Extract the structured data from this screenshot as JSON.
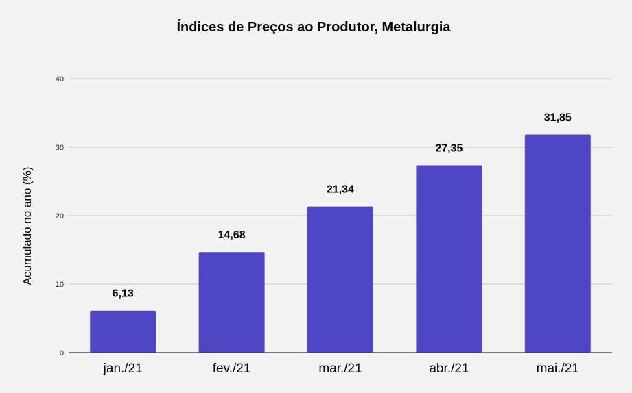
{
  "chart_data": {
    "type": "bar",
    "title": "Índices de Preços ao Produtor, Metalurgia",
    "xlabel": "",
    "ylabel": "Acumulado no ano (%)",
    "categories": [
      "jan./21",
      "fev./21",
      "mar./21",
      "abr./21",
      "mai./21"
    ],
    "values": [
      6.13,
      14.68,
      21.34,
      27.35,
      31.85
    ],
    "value_labels": [
      "6,13",
      "14,68",
      "21,34",
      "27,35",
      "31,85"
    ],
    "ylim": [
      0,
      40
    ],
    "yticks": [
      0,
      10,
      20,
      30,
      40
    ],
    "grid": true,
    "legend": "none",
    "bar_color": "#4f46c6"
  }
}
